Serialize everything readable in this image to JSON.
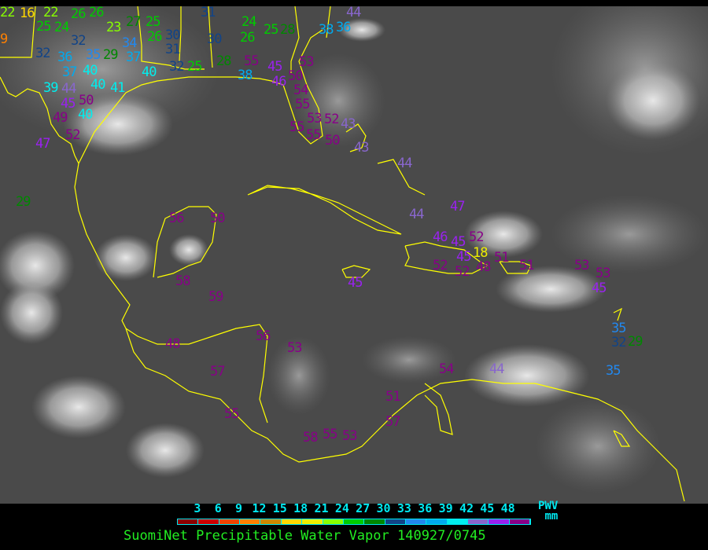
{
  "title": "SuomiNet Precipitable Water Vapor 140927/0745",
  "legend": {
    "ticks": [
      "3",
      "6",
      "9",
      "12",
      "15",
      "18",
      "21",
      "24",
      "27",
      "30",
      "33",
      "36",
      "39",
      "42",
      "45",
      "48"
    ],
    "unit_top": "PWV",
    "unit_bottom": "mm",
    "colors": [
      "#8b0000",
      "#cc0000",
      "#ee4400",
      "#ff8000",
      "#cc8800",
      "#ffd700",
      "#eeee00",
      "#88ff00",
      "#00cc00",
      "#008800",
      "#114488",
      "#2288ee",
      "#00aaee",
      "#00eeee",
      "#8866cc",
      "#9922ee",
      "#880088"
    ]
  },
  "coastline_color": "#ffff00",
  "station_values": [
    22,
    16,
    22,
    26,
    26,
    25,
    24,
    25,
    27,
    23,
    32,
    32,
    36,
    35,
    29,
    34,
    37,
    26,
    30,
    31,
    30,
    31,
    40,
    40,
    37,
    39,
    44,
    45,
    50,
    40,
    41,
    40,
    49,
    52,
    47,
    32,
    25,
    28,
    55,
    9,
    29,
    24,
    26,
    25,
    28,
    38,
    44,
    36,
    38,
    45,
    46,
    50,
    54,
    53,
    55,
    53,
    52,
    55,
    55,
    50,
    43,
    43,
    44,
    44,
    47,
    46,
    45,
    52,
    45,
    18,
    52,
    52,
    48,
    51,
    51,
    53,
    53,
    45,
    35,
    32,
    29,
    35,
    45,
    56,
    50,
    58,
    59,
    48,
    57,
    55,
    56,
    53,
    54,
    44,
    51,
    57,
    58,
    55,
    53
  ]
}
